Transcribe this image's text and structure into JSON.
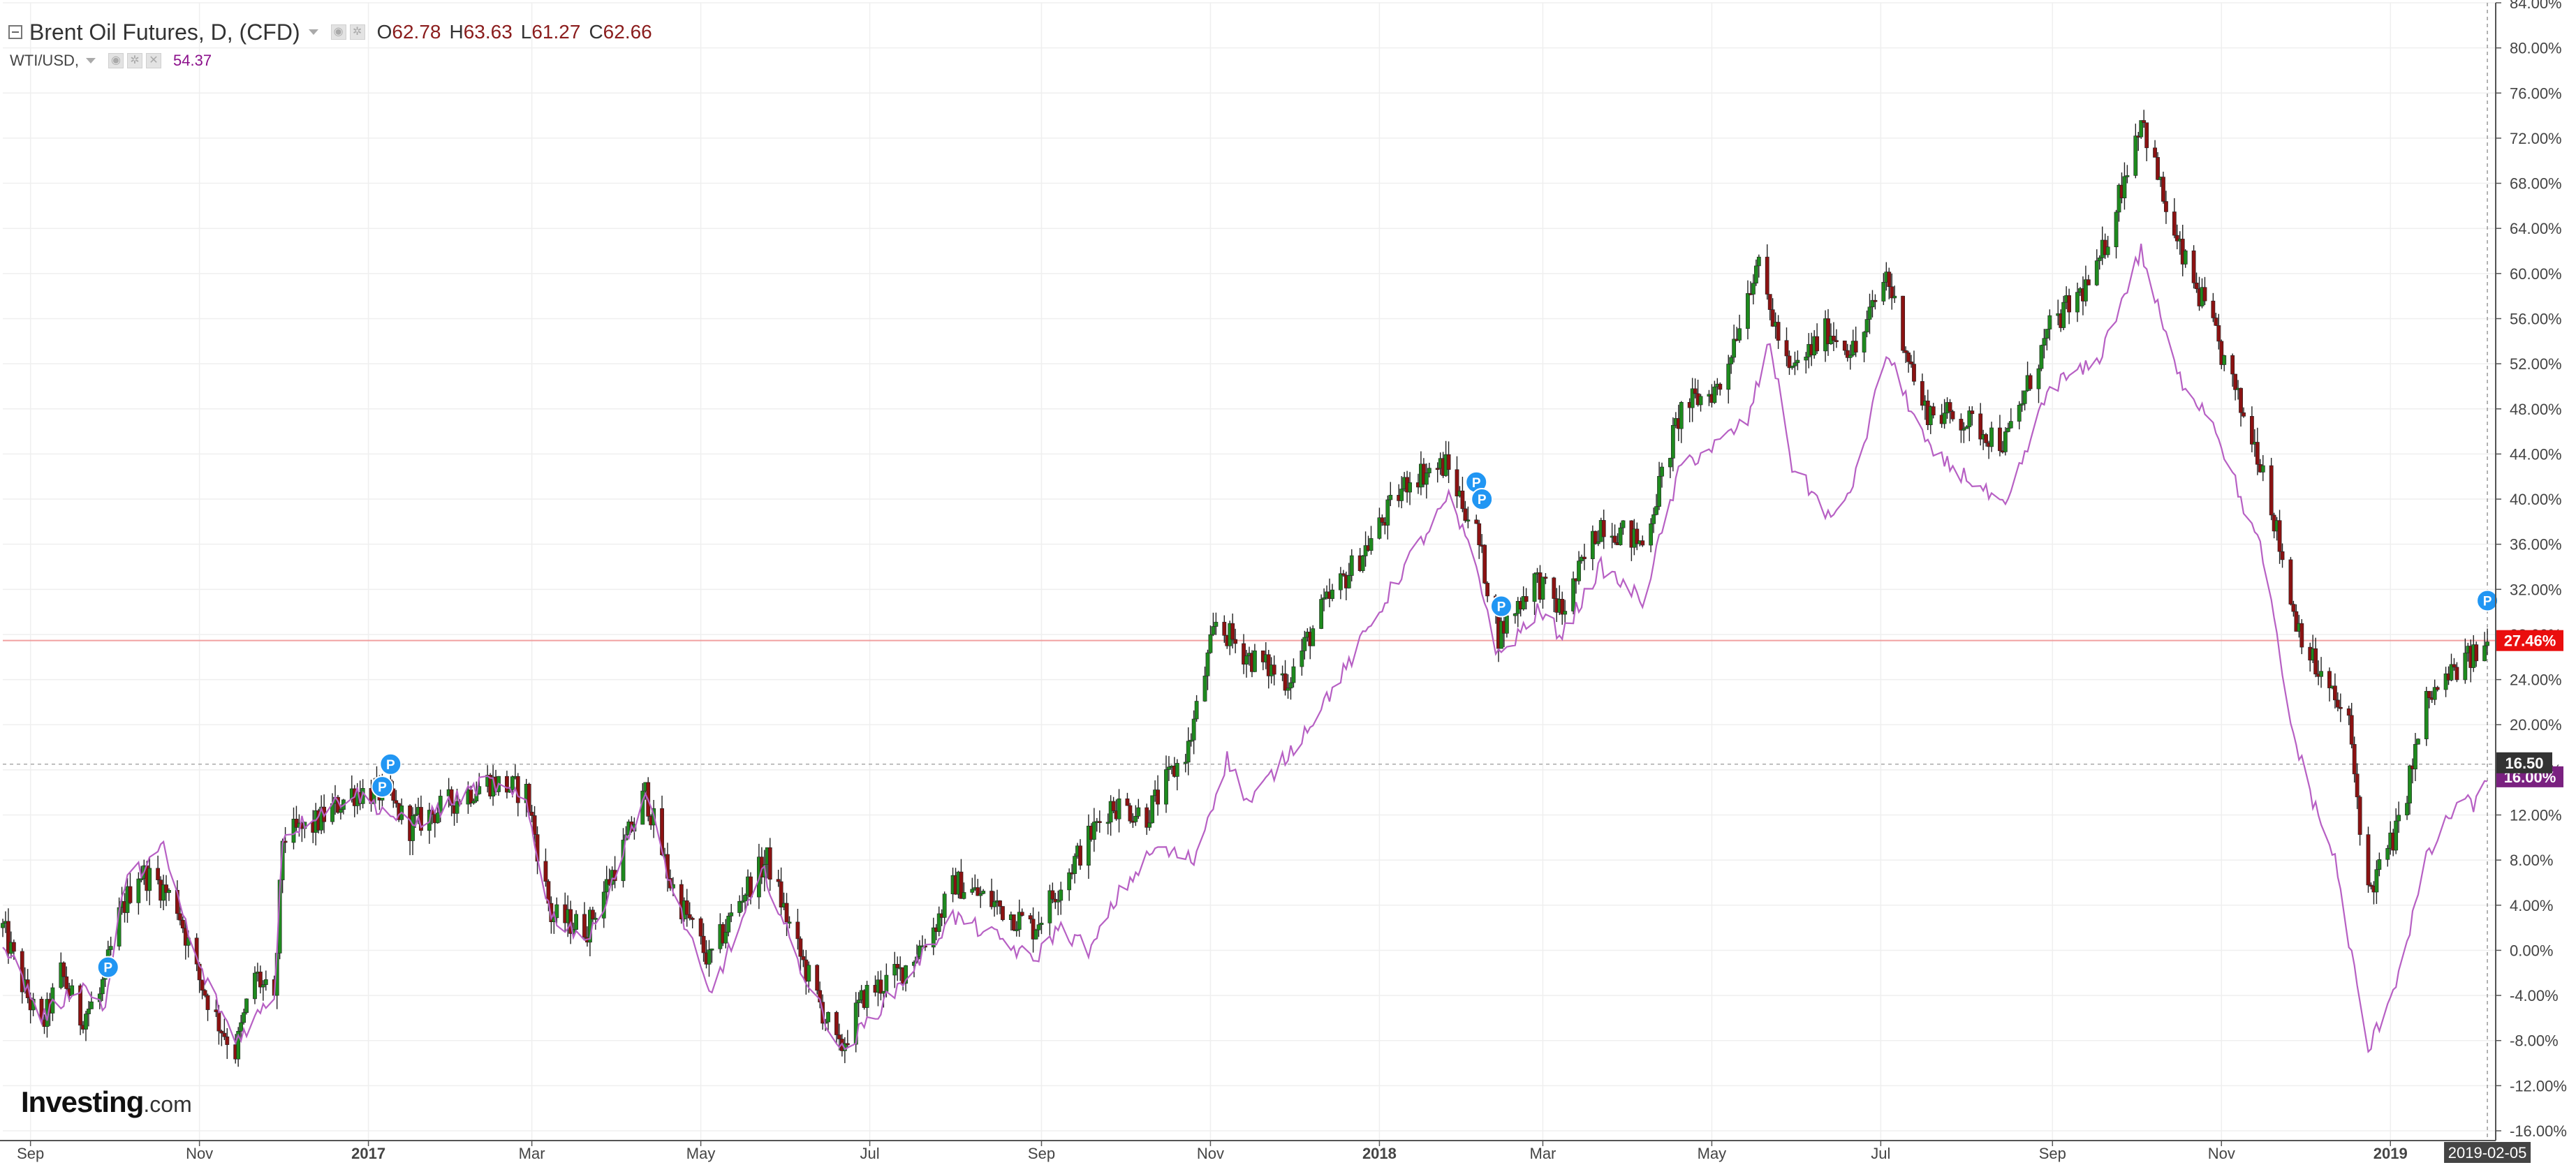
{
  "legend": {
    "main_title": "Brent Oil Futures, D, (CFD)",
    "ohlc": [
      {
        "key": "O",
        "value": "62.78"
      },
      {
        "key": "H",
        "value": "63.63"
      },
      {
        "key": "L",
        "value": "61.27"
      },
      {
        "key": "C",
        "value": "62.66"
      }
    ],
    "wti_title": "WTI/USD,",
    "wti_value": "54.37"
  },
  "brand": {
    "name": "Investing",
    "suffix": ".com"
  },
  "colors": {
    "up": "#1e8a1e",
    "down": "#8b1212",
    "wti": "#b760c4",
    "marker": "#2196f3",
    "price_line": "#f0a0a0",
    "red_badge": "#ea0e0e",
    "purple_badge": "#7a2180",
    "axis_text": "#444444"
  },
  "chart_data": {
    "type": "candlestick",
    "ylim": [
      -16,
      84
    ],
    "y_unit": "%",
    "y_ticks": [
      "84.00%",
      "80.00%",
      "76.00%",
      "72.00%",
      "68.00%",
      "64.00%",
      "60.00%",
      "56.00%",
      "52.00%",
      "48.00%",
      "44.00%",
      "40.00%",
      "36.00%",
      "32.00%",
      "28.00%",
      "24.00%",
      "20.00%",
      "16.00%",
      "12.00%",
      "8.00%",
      "4.00%",
      "0.00%",
      "-4.00%",
      "-8.00%",
      "-12.00%",
      "-16.00%"
    ],
    "x_start": "2016-08-22",
    "x_end": "2019-02-07",
    "x_ticks": [
      {
        "date": "2016-09-01",
        "label": "Sep",
        "bold": false
      },
      {
        "date": "2016-11-01",
        "label": "Nov",
        "bold": false
      },
      {
        "date": "2017-01-01",
        "label": "2017",
        "bold": true
      },
      {
        "date": "2017-03-01",
        "label": "Mar",
        "bold": false
      },
      {
        "date": "2017-05-01",
        "label": "May",
        "bold": false
      },
      {
        "date": "2017-07-01",
        "label": "Jul",
        "bold": false
      },
      {
        "date": "2017-09-01",
        "label": "Sep",
        "bold": false
      },
      {
        "date": "2017-11-01",
        "label": "Nov",
        "bold": false
      },
      {
        "date": "2018-01-01",
        "label": "2018",
        "bold": true
      },
      {
        "date": "2018-03-01",
        "label": "Mar",
        "bold": false
      },
      {
        "date": "2018-05-01",
        "label": "May",
        "bold": false
      },
      {
        "date": "2018-07-01",
        "label": "Jul",
        "bold": false
      },
      {
        "date": "2018-09-01",
        "label": "Sep",
        "bold": false
      },
      {
        "date": "2018-11-01",
        "label": "Nov",
        "bold": false
      },
      {
        "date": "2019-01-01",
        "label": "2019",
        "bold": true
      }
    ],
    "crosshair_date": "2019-02-05",
    "crosshair_label": "2019-02-05",
    "series": [
      {
        "name": "Brent Oil Futures, D, (CFD)",
        "kind": "candlestick",
        "close_anchors": [
          [
            "2016-08-22",
            2
          ],
          [
            "2016-08-29",
            -3
          ],
          [
            "2016-09-05",
            -7
          ],
          [
            "2016-09-12",
            -2
          ],
          [
            "2016-09-19",
            -6
          ],
          [
            "2016-09-26",
            -4
          ],
          [
            "2016-10-03",
            3
          ],
          [
            "2016-10-10",
            7
          ],
          [
            "2016-10-17",
            6
          ],
          [
            "2016-10-24",
            4
          ],
          [
            "2016-10-31",
            -2
          ],
          [
            "2016-11-07",
            -6
          ],
          [
            "2016-11-14",
            -9
          ],
          [
            "2016-11-21",
            -2
          ],
          [
            "2016-11-28",
            -5
          ],
          [
            "2016-12-01",
            10
          ],
          [
            "2016-12-12",
            11
          ],
          [
            "2016-12-26",
            14
          ],
          [
            "2017-01-06",
            14
          ],
          [
            "2017-01-16",
            11
          ],
          [
            "2017-01-30",
            13
          ],
          [
            "2017-02-13",
            15
          ],
          [
            "2017-02-27",
            14
          ],
          [
            "2017-03-08",
            3
          ],
          [
            "2017-03-21",
            2
          ],
          [
            "2017-04-03",
            9
          ],
          [
            "2017-04-11",
            14
          ],
          [
            "2017-04-20",
            6
          ],
          [
            "2017-05-04",
            -1
          ],
          [
            "2017-05-16",
            5
          ],
          [
            "2017-05-25",
            8
          ],
          [
            "2017-06-05",
            0
          ],
          [
            "2017-06-20",
            -9
          ],
          [
            "2017-06-29",
            -4
          ],
          [
            "2017-07-12",
            -2
          ],
          [
            "2017-07-24",
            2
          ],
          [
            "2017-08-01",
            6
          ],
          [
            "2017-08-16",
            4
          ],
          [
            "2017-08-29",
            2
          ],
          [
            "2017-09-08",
            6
          ],
          [
            "2017-09-26",
            13
          ],
          [
            "2017-10-09",
            12
          ],
          [
            "2017-10-24",
            18
          ],
          [
            "2017-11-03",
            29
          ],
          [
            "2017-11-15",
            26
          ],
          [
            "2017-11-29",
            24
          ],
          [
            "2017-12-11",
            30
          ],
          [
            "2017-12-28",
            36
          ],
          [
            "2018-01-12",
            42
          ],
          [
            "2018-01-25",
            43
          ],
          [
            "2018-02-05",
            37
          ],
          [
            "2018-02-13",
            28
          ],
          [
            "2018-02-26",
            33
          ],
          [
            "2018-03-08",
            30
          ],
          [
            "2018-03-22",
            38
          ],
          [
            "2018-04-06",
            36
          ],
          [
            "2018-04-20",
            48
          ],
          [
            "2018-05-04",
            50
          ],
          [
            "2018-05-17",
            61
          ],
          [
            "2018-05-29",
            51
          ],
          [
            "2018-06-12",
            55
          ],
          [
            "2018-06-22",
            53
          ],
          [
            "2018-07-03",
            60
          ],
          [
            "2018-07-16",
            48
          ],
          [
            "2018-07-31",
            47
          ],
          [
            "2018-08-15",
            45
          ],
          [
            "2018-08-31",
            55
          ],
          [
            "2018-09-17",
            60
          ],
          [
            "2018-10-03",
            74
          ],
          [
            "2018-10-15",
            63
          ],
          [
            "2018-10-26",
            57
          ],
          [
            "2018-11-08",
            48
          ],
          [
            "2018-11-16",
            43
          ],
          [
            "2018-11-27",
            30
          ],
          [
            "2018-12-05",
            25
          ],
          [
            "2018-12-17",
            20
          ],
          [
            "2018-12-24",
            5
          ],
          [
            "2019-01-04",
            11
          ],
          [
            "2019-01-14",
            22
          ],
          [
            "2019-01-25",
            25
          ],
          [
            "2019-02-05",
            27
          ]
        ]
      },
      {
        "name": "WTI/USD,",
        "kind": "line",
        "anchors": [
          [
            "2016-08-22",
            1
          ],
          [
            "2016-09-05",
            -6
          ],
          [
            "2016-09-19",
            -3
          ],
          [
            "2016-09-28",
            -5
          ],
          [
            "2016-10-05",
            6
          ],
          [
            "2016-10-19",
            9
          ],
          [
            "2016-10-31",
            -1
          ],
          [
            "2016-11-14",
            -8
          ],
          [
            "2016-11-28",
            -4
          ],
          [
            "2016-12-01",
            10
          ],
          [
            "2016-12-12",
            12
          ],
          [
            "2016-12-27",
            14
          ],
          [
            "2017-01-16",
            11
          ],
          [
            "2017-02-13",
            15
          ],
          [
            "2017-02-27",
            13
          ],
          [
            "2017-03-08",
            3
          ],
          [
            "2017-03-22",
            1
          ],
          [
            "2017-04-11",
            14
          ],
          [
            "2017-04-20",
            6
          ],
          [
            "2017-05-04",
            -4
          ],
          [
            "2017-05-24",
            7
          ],
          [
            "2017-06-05",
            -1
          ],
          [
            "2017-06-21",
            -9
          ],
          [
            "2017-07-12",
            -3
          ],
          [
            "2017-07-31",
            3
          ],
          [
            "2017-08-17",
            1
          ],
          [
            "2017-08-29",
            -1
          ],
          [
            "2017-09-07",
            2
          ],
          [
            "2017-09-19",
            0
          ],
          [
            "2017-09-29",
            5
          ],
          [
            "2017-10-12",
            9
          ],
          [
            "2017-10-26",
            8
          ],
          [
            "2017-11-07",
            17
          ],
          [
            "2017-11-15",
            13
          ],
          [
            "2017-12-01",
            18
          ],
          [
            "2017-12-20",
            25
          ],
          [
            "2018-01-10",
            34
          ],
          [
            "2018-01-26",
            40
          ],
          [
            "2018-02-05",
            34
          ],
          [
            "2018-02-13",
            26
          ],
          [
            "2018-02-27",
            30
          ],
          [
            "2018-03-08",
            28
          ],
          [
            "2018-03-22",
            34
          ],
          [
            "2018-04-06",
            31
          ],
          [
            "2018-04-20",
            43
          ],
          [
            "2018-05-04",
            45
          ],
          [
            "2018-05-14",
            47
          ],
          [
            "2018-05-22",
            54
          ],
          [
            "2018-05-30",
            43
          ],
          [
            "2018-06-14",
            38
          ],
          [
            "2018-06-22",
            42
          ],
          [
            "2018-07-03",
            53
          ],
          [
            "2018-07-19",
            44
          ],
          [
            "2018-08-01",
            42
          ],
          [
            "2018-08-15",
            39
          ],
          [
            "2018-08-31",
            50
          ],
          [
            "2018-09-17",
            52
          ],
          [
            "2018-10-03",
            62
          ],
          [
            "2018-10-16",
            51
          ],
          [
            "2018-10-29",
            47
          ],
          [
            "2018-11-08",
            40
          ],
          [
            "2018-11-16",
            35
          ],
          [
            "2018-11-26",
            20
          ],
          [
            "2018-12-03",
            14
          ],
          [
            "2018-12-12",
            8
          ],
          [
            "2018-12-24",
            -9
          ],
          [
            "2019-01-04",
            -2
          ],
          [
            "2019-01-14",
            8
          ],
          [
            "2019-01-25",
            13
          ],
          [
            "2019-02-01",
            13
          ],
          [
            "2019-02-05",
            15
          ]
        ]
      }
    ],
    "current_lines": [
      {
        "series": "Brent Oil Futures, D, (CFD)",
        "value": 27.46,
        "label": "27.46%"
      },
      {
        "series": "WTI/USD,",
        "value": 16.0,
        "label": "16.00%"
      },
      {
        "series": "crosshair",
        "value": 16.5,
        "label": "16.50"
      }
    ],
    "event_markers": [
      {
        "date": "2016-09-29",
        "value": -1.5,
        "label": "P"
      },
      {
        "date": "2017-01-09",
        "value": 16.5,
        "label": "P"
      },
      {
        "date": "2017-01-06",
        "value": 14.5,
        "label": "P"
      },
      {
        "date": "2018-02-05",
        "value": 41.5,
        "label": "P"
      },
      {
        "date": "2018-02-07",
        "value": 40.0,
        "label": "P"
      },
      {
        "date": "2018-02-14",
        "value": 30.5,
        "label": "P"
      },
      {
        "date": "2019-02-05",
        "value": 31.0,
        "label": "P"
      }
    ]
  }
}
